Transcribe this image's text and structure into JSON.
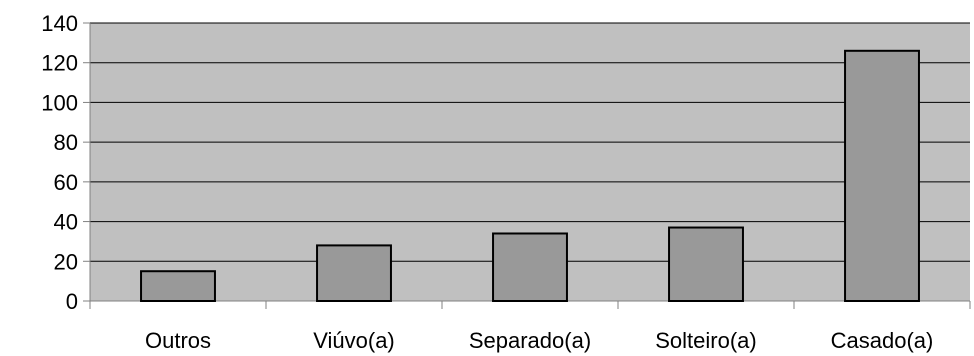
{
  "chart_data": {
    "type": "bar",
    "title": "",
    "xlabel": "",
    "ylabel": "",
    "categories": [
      "Outros",
      "Viúvo(a)",
      "Separado(a)",
      "Solteiro(a)",
      "Casado(a)"
    ],
    "values": [
      15,
      28,
      34,
      37,
      126
    ],
    "ylim": [
      0,
      140
    ],
    "yticks": [
      0,
      20,
      40,
      60,
      80,
      100,
      120,
      140
    ],
    "ytick_labels": [
      "0",
      "20",
      "40",
      "60",
      "80",
      "100",
      "120",
      "140"
    ],
    "grid": true,
    "legend": "none",
    "colors": {
      "plot_background": "#c0c0c0",
      "bar_fill": "#999999",
      "bar_stroke": "#000000",
      "gridline": "#000000",
      "axis": "#808080"
    }
  }
}
